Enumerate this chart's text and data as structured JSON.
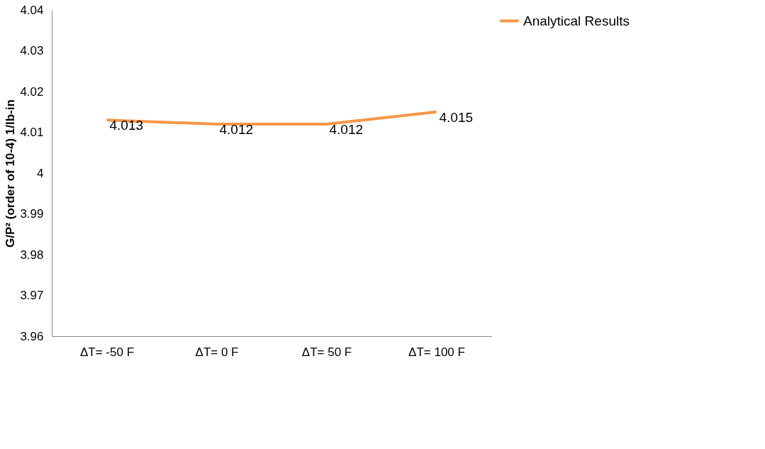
{
  "chart_data": {
    "type": "line",
    "ylabel": "G/P² (order of 10-4) 1/lb-in",
    "categories": [
      "ΔT=  -50 F",
      "ΔT= 0 F",
      "ΔT= 50 F",
      "ΔT= 100 F"
    ],
    "series": [
      {
        "name": "Analytical Results",
        "color": "#f79646",
        "values": [
          4.013,
          4.012,
          4.012,
          4.015
        ]
      }
    ],
    "ylim": [
      3.96,
      4.04
    ],
    "yticks": [
      3.96,
      3.97,
      3.98,
      3.99,
      4,
      4.01,
      4.02,
      4.03,
      4.04
    ],
    "grid": false,
    "legend": "right",
    "data_labels": true,
    "marker": "none",
    "line_style": "solid"
  }
}
